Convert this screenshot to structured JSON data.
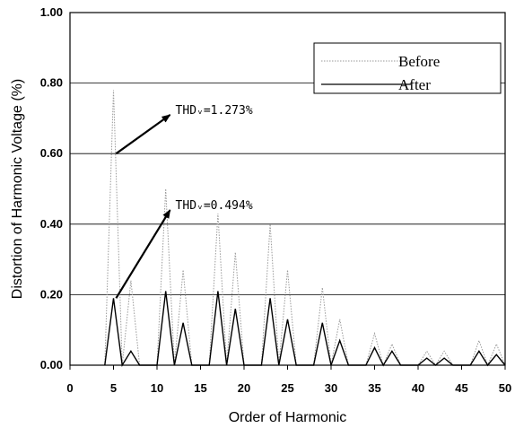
{
  "chart_data": {
    "type": "line",
    "xlabel": "Order of Harmonic",
    "ylabel": "Distortion of Harmonic Voltage (%)",
    "xlim": [
      0,
      50
    ],
    "ylim": [
      0,
      1.0
    ],
    "xticks": [
      "0",
      "5",
      "10",
      "15",
      "20",
      "25",
      "30",
      "35",
      "40",
      "45",
      "50"
    ],
    "yticks": [
      "0.00",
      "0.20",
      "0.40",
      "0.60",
      "0.80",
      "1.00"
    ],
    "grid": "horizontal",
    "legend_position": "top-right",
    "series": [
      {
        "name": "Before",
        "color": "#9a9a9a",
        "style": "dotted",
        "x": [
          4,
          5,
          6,
          7,
          8,
          10,
          11,
          12,
          13,
          14,
          16,
          17,
          18,
          19,
          20,
          22,
          23,
          24,
          25,
          26,
          28,
          29,
          30,
          31,
          32,
          34,
          35,
          36,
          37,
          38,
          40,
          41,
          42,
          43,
          44,
          46,
          47,
          48,
          49,
          50
        ],
        "y": [
          0,
          0.78,
          0,
          0.24,
          0,
          0,
          0.5,
          0,
          0.27,
          0,
          0,
          0.43,
          0,
          0.32,
          0,
          0,
          0.4,
          0,
          0.27,
          0,
          0,
          0.22,
          0,
          0.13,
          0,
          0,
          0.09,
          0,
          0.06,
          0,
          0,
          0.04,
          0,
          0.04,
          0,
          0,
          0.07,
          0,
          0.06,
          0
        ]
      },
      {
        "name": "After",
        "color": "#000000",
        "style": "solid",
        "x": [
          4,
          5,
          6,
          7,
          8,
          10,
          11,
          12,
          13,
          14,
          16,
          17,
          18,
          19,
          20,
          22,
          23,
          24,
          25,
          26,
          28,
          29,
          30,
          31,
          32,
          34,
          35,
          36,
          37,
          38,
          40,
          41,
          42,
          43,
          44,
          46,
          47,
          48,
          49,
          50
        ],
        "y": [
          0,
          0.19,
          0,
          0.04,
          0,
          0,
          0.21,
          0,
          0.12,
          0,
          0,
          0.21,
          0,
          0.16,
          0,
          0,
          0.19,
          0,
          0.13,
          0,
          0,
          0.12,
          0,
          0.07,
          0,
          0,
          0.05,
          0,
          0.04,
          0,
          0,
          0.02,
          0,
          0.02,
          0,
          0,
          0.04,
          0,
          0.03,
          0
        ]
      }
    ],
    "annotations": [
      {
        "text": "THDᵥ=1.273%",
        "arrow_from": [
          5.3,
          0.6
        ],
        "arrow_to": [
          11.5,
          0.71
        ]
      },
      {
        "text": "THDᵥ=0.494%",
        "arrow_from": [
          5.3,
          0.19
        ],
        "arrow_to": [
          11.5,
          0.44
        ]
      }
    ]
  }
}
